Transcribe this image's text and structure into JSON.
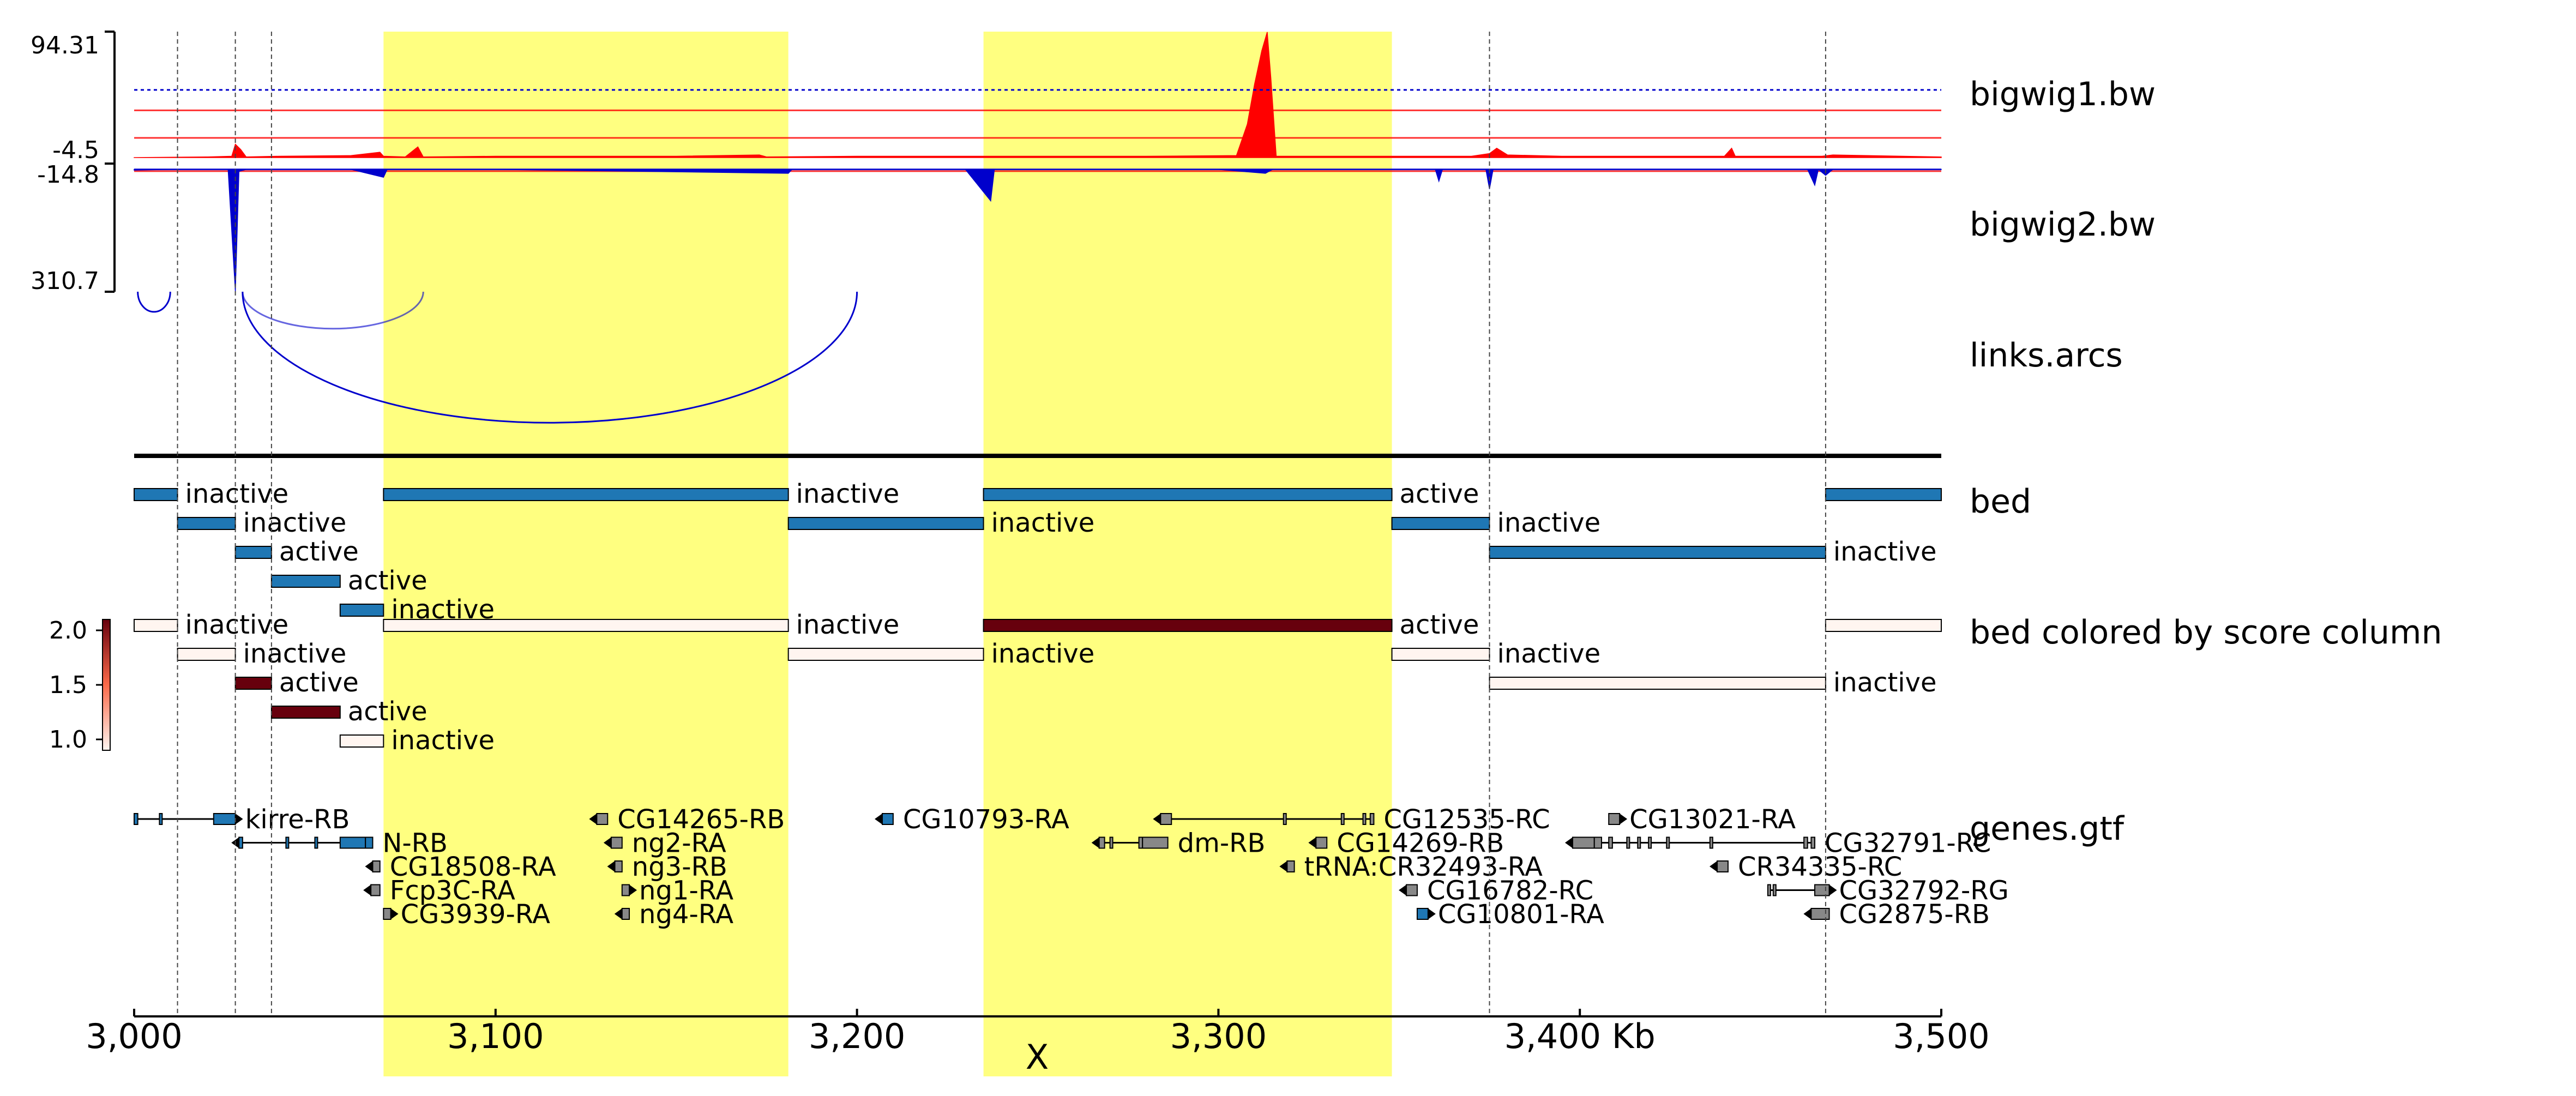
{
  "colors": {
    "highlight": "#ffff80",
    "bed_fill": "#1f77b4",
    "bigwig1": "#ff0000",
    "bigwig2": "#0000cc",
    "arcs": "#0000cc",
    "gene_fill": "#1f77b4",
    "gene_gray": "#888888",
    "score_low": "#fff5f0",
    "score_high": "#67000d"
  },
  "chart_data": {
    "type": "genome-tracks",
    "region": {
      "start": 3000000,
      "end": 3500000
    },
    "x_axis": {
      "ticks": [
        3000000,
        3100000,
        3200000,
        3300000,
        3400000,
        3500000
      ],
      "tick_labels": [
        "3,000",
        "3,100",
        "3,200",
        "3,300",
        "3,400 Kb",
        "3,500"
      ],
      "chrom_label": "X"
    },
    "highlights": [
      [
        3069000,
        3181000
      ],
      [
        3235000,
        3348000
      ]
    ],
    "vlines": [
      3012000,
      3028000,
      3038000,
      3375000,
      3468000
    ],
    "tracks": {
      "bigwig1": {
        "title": "bigwig1.bw",
        "scale_labels": [
          "94.31",
          "-4.5"
        ],
        "scale_range": [
          -4.5,
          94.31
        ],
        "points": [
          [
            3000000,
            0
          ],
          [
            3020000,
            0.5
          ],
          [
            3027000,
            1
          ],
          [
            3028000,
            10
          ],
          [
            3029500,
            6
          ],
          [
            3031000,
            0.5
          ],
          [
            3040000,
            1
          ],
          [
            3060000,
            1.5
          ],
          [
            3068000,
            4
          ],
          [
            3069000,
            1
          ],
          [
            3075000,
            0.5
          ],
          [
            3078500,
            8
          ],
          [
            3080000,
            0.5
          ],
          [
            3100000,
            1
          ],
          [
            3130000,
            1
          ],
          [
            3150000,
            1
          ],
          [
            3173000,
            2
          ],
          [
            3175000,
            0.5
          ],
          [
            3200000,
            1
          ],
          [
            3230000,
            1
          ],
          [
            3260000,
            1
          ],
          [
            3280000,
            1
          ],
          [
            3305000,
            1.5
          ],
          [
            3308000,
            25
          ],
          [
            3310000,
            55
          ],
          [
            3312000,
            80
          ],
          [
            3313500,
            94
          ],
          [
            3314500,
            60
          ],
          [
            3316000,
            1
          ],
          [
            3330000,
            1
          ],
          [
            3350000,
            1
          ],
          [
            3370000,
            1
          ],
          [
            3375000,
            3
          ],
          [
            3377000,
            7
          ],
          [
            3380000,
            2
          ],
          [
            3395000,
            1
          ],
          [
            3420000,
            1
          ],
          [
            3440000,
            1
          ],
          [
            3442000,
            7
          ],
          [
            3443000,
            1
          ],
          [
            3467000,
            1
          ],
          [
            3470000,
            2
          ],
          [
            3500000,
            0.5
          ]
        ]
      },
      "bigwig2": {
        "title": "bigwig2.bw",
        "scale_labels": [
          "-14.8",
          "310.7"
        ],
        "scale_range": [
          -14.8,
          310.7
        ],
        "points": [
          [
            3000000,
            -2
          ],
          [
            3010000,
            0
          ],
          [
            3026000,
            0
          ],
          [
            3028000,
            -310
          ],
          [
            3029000,
            -5
          ],
          [
            3031000,
            0
          ],
          [
            3060000,
            0
          ],
          [
            3069000,
            -20
          ],
          [
            3070000,
            0
          ],
          [
            3100000,
            0
          ],
          [
            3181000,
            -10
          ],
          [
            3182000,
            0
          ],
          [
            3230000,
            0
          ],
          [
            3237000,
            -80
          ],
          [
            3238000,
            0
          ],
          [
            3300000,
            0
          ],
          [
            3313000,
            -10
          ],
          [
            3315000,
            0
          ],
          [
            3360000,
            0
          ],
          [
            3361000,
            -30
          ],
          [
            3362000,
            0
          ],
          [
            3374000,
            0
          ],
          [
            3375000,
            -50
          ],
          [
            3376000,
            0
          ],
          [
            3463000,
            0
          ],
          [
            3465000,
            -40
          ],
          [
            3466000,
            0
          ],
          [
            3468000,
            -15
          ],
          [
            3470000,
            0
          ],
          [
            3500000,
            0
          ]
        ],
        "hlines": [
          {
            "value": -4.5,
            "color": "#ff0000",
            "style": "solid"
          },
          {
            "value": 0,
            "color": "#0000cc",
            "style": "solid"
          },
          {
            "value": 80,
            "color": "#ff0000",
            "style": "solid"
          },
          {
            "value": 150,
            "color": "#ff0000",
            "style": "solid"
          },
          {
            "value": 202,
            "color": "#0000cc",
            "style": "dotted"
          }
        ]
      },
      "links": {
        "title": "links.arcs",
        "arcs": [
          {
            "start": 3001000,
            "end": 3010000,
            "color": "#0000cc",
            "depth": 0.12,
            "alpha": 1
          },
          {
            "start": 3030000,
            "end": 3080000,
            "color": "#0000cc",
            "depth": 0.22,
            "alpha": 0.6
          },
          {
            "start": 3030000,
            "end": 3200000,
            "color": "#0000cc",
            "depth": 0.78,
            "alpha": 1
          }
        ]
      },
      "bed": {
        "title": "bed",
        "features": [
          {
            "start": 3000000,
            "end": 3012000,
            "label": "inactive",
            "row": 0
          },
          {
            "start": 3012000,
            "end": 3028000,
            "label": "inactive",
            "row": 1
          },
          {
            "start": 3028000,
            "end": 3038000,
            "label": "active",
            "row": 2
          },
          {
            "start": 3038000,
            "end": 3057000,
            "label": "active",
            "row": 3
          },
          {
            "start": 3057000,
            "end": 3069000,
            "label": "inactive",
            "row": 4
          },
          {
            "start": 3069000,
            "end": 3181000,
            "label": "inactive",
            "row": 0
          },
          {
            "start": 3181000,
            "end": 3235000,
            "label": "inactive",
            "row": 1
          },
          {
            "start": 3235000,
            "end": 3348000,
            "label": "active",
            "row": 0
          },
          {
            "start": 3348000,
            "end": 3375000,
            "label": "inactive",
            "row": 1
          },
          {
            "start": 3375000,
            "end": 3468000,
            "label": "inactive",
            "row": 2
          },
          {
            "start": 3468000,
            "end": 3500000,
            "label": "",
            "row": 0
          }
        ]
      },
      "bed_score": {
        "title": "bed colored by score column",
        "colorbar": {
          "ticks": [
            1.0,
            1.5,
            2.0
          ],
          "tick_labels": [
            "1.0",
            "1.5",
            "2.0"
          ],
          "range": [
            0.9,
            2.1
          ]
        },
        "features": [
          {
            "start": 3000000,
            "end": 3012000,
            "label": "inactive",
            "row": 0,
            "score": 1.0
          },
          {
            "start": 3012000,
            "end": 3028000,
            "label": "inactive",
            "row": 1,
            "score": 1.0
          },
          {
            "start": 3028000,
            "end": 3038000,
            "label": "active",
            "row": 2,
            "score": 2.0
          },
          {
            "start": 3038000,
            "end": 3057000,
            "label": "active",
            "row": 3,
            "score": 2.0
          },
          {
            "start": 3057000,
            "end": 3069000,
            "label": "inactive",
            "row": 4,
            "score": 1.0
          },
          {
            "start": 3069000,
            "end": 3181000,
            "label": "inactive",
            "row": 0,
            "score": 1.0
          },
          {
            "start": 3181000,
            "end": 3235000,
            "label": "inactive",
            "row": 1,
            "score": 1.0
          },
          {
            "start": 3235000,
            "end": 3348000,
            "label": "active",
            "row": 0,
            "score": 2.0
          },
          {
            "start": 3348000,
            "end": 3375000,
            "label": "inactive",
            "row": 1,
            "score": 1.0
          },
          {
            "start": 3375000,
            "end": 3468000,
            "label": "inactive",
            "row": 2,
            "score": 1.0
          },
          {
            "start": 3468000,
            "end": 3500000,
            "label": "",
            "row": 0,
            "score": 1.0
          }
        ]
      },
      "genes": {
        "title": "genes.gtf",
        "features": [
          {
            "name": "kirre-RB",
            "start": 3000000,
            "end": 3028000,
            "row": 0,
            "strand": "+",
            "exons": [
              [
                3000000,
                3001000
              ],
              [
                3007000,
                3007500
              ],
              [
                3022000,
                3028000
              ]
            ],
            "color": "#1f77b4"
          },
          {
            "name": "N-RB",
            "start": 3029000,
            "end": 3066000,
            "row": 1,
            "strand": "-",
            "exons": [
              [
                3029000,
                3030000
              ],
              [
                3042000,
                3042500
              ],
              [
                3050000,
                3050500
              ],
              [
                3057000,
                3064000
              ],
              [
                3064000,
                3066000
              ]
            ],
            "color": "#1f77b4"
          },
          {
            "name": "CG18508-RA",
            "start": 3066000,
            "end": 3068000,
            "row": 2,
            "strand": "-",
            "exons": [
              [
                3066000,
                3068000
              ]
            ],
            "color": "#888888"
          },
          {
            "name": "Fcp3C-RA",
            "start": 3065500,
            "end": 3068000,
            "row": 3,
            "strand": "-",
            "exons": [
              [
                3065500,
                3068000
              ]
            ],
            "color": "#888888"
          },
          {
            "name": "CG3939-RA",
            "start": 3069000,
            "end": 3071000,
            "row": 4,
            "strand": "+",
            "exons": [
              [
                3069000,
                3071000
              ]
            ],
            "color": "#888888"
          },
          {
            "name": "CG14265-RB",
            "start": 3128000,
            "end": 3131000,
            "row": 0,
            "strand": "-",
            "exons": [
              [
                3128000,
                3131000
              ]
            ],
            "color": "#888888"
          },
          {
            "name": "ng2-RA",
            "start": 3132000,
            "end": 3135000,
            "row": 1,
            "strand": "-",
            "exons": [
              [
                3132000,
                3135000
              ]
            ],
            "color": "#888888"
          },
          {
            "name": "ng3-RB",
            "start": 3133000,
            "end": 3135000,
            "row": 2,
            "strand": "-",
            "exons": [
              [
                3133000,
                3135000
              ]
            ],
            "color": "#888888"
          },
          {
            "name": "ng1-RA",
            "start": 3135000,
            "end": 3137000,
            "row": 3,
            "strand": "+",
            "exons": [
              [
                3135000,
                3137000
              ]
            ],
            "color": "#888888"
          },
          {
            "name": "ng4-RA",
            "start": 3135000,
            "end": 3137000,
            "row": 4,
            "strand": "-",
            "exons": [
              [
                3135000,
                3137000
              ]
            ],
            "color": "#888888"
          },
          {
            "name": "CG10793-RA",
            "start": 3207000,
            "end": 3210000,
            "row": 0,
            "strand": "-",
            "exons": [
              [
                3207000,
                3210000
              ]
            ],
            "color": "#1f77b4"
          },
          {
            "name": "dm-RB",
            "start": 3267000,
            "end": 3286000,
            "row": 1,
            "strand": "-",
            "exons": [
              [
                3267000,
                3268500
              ],
              [
                3270000,
                3270500
              ],
              [
                3278000,
                3279000
              ],
              [
                3279000,
                3286000
              ]
            ],
            "color": "#888888"
          },
          {
            "name": "CG12535-RC",
            "start": 3284000,
            "end": 3343000,
            "row": 0,
            "strand": "-",
            "exons": [
              [
                3284000,
                3287000
              ],
              [
                3318000,
                3318500
              ],
              [
                3334000,
                3334500
              ],
              [
                3340000,
                3340500
              ],
              [
                3342000,
                3343000
              ]
            ],
            "color": "#888888"
          },
          {
            "name": "CG14269-RB",
            "start": 3327000,
            "end": 3330000,
            "row": 1,
            "strand": "-",
            "exons": [
              [
                3327000,
                3330000
              ]
            ],
            "color": "#888888"
          },
          {
            "name": "tRNA:CR32493-RA",
            "start": 3319000,
            "end": 3321000,
            "row": 2,
            "strand": "-",
            "exons": [
              [
                3319000,
                3321000
              ]
            ],
            "color": "#888888"
          },
          {
            "name": "CG16782-RC",
            "start": 3352000,
            "end": 3355000,
            "row": 3,
            "strand": "-",
            "exons": [
              [
                3352000,
                3355000
              ]
            ],
            "color": "#888888"
          },
          {
            "name": "CG10801-RA",
            "start": 3355000,
            "end": 3358000,
            "row": 4,
            "strand": "+",
            "exons": [
              [
                3355000,
                3358000
              ]
            ],
            "color": "#1f77b4"
          },
          {
            "name": "CG13021-RA",
            "start": 3408000,
            "end": 3411000,
            "row": 0,
            "strand": "+",
            "exons": [
              [
                3408000,
                3411000
              ]
            ],
            "color": "#888888"
          },
          {
            "name": "CG32791-RC",
            "start": 3398000,
            "end": 3465000,
            "row": 1,
            "strand": "-",
            "exons": [
              [
                3398000,
                3404000
              ],
              [
                3404000,
                3406000
              ],
              [
                3408000,
                3409000
              ],
              [
                3413000,
                3413500
              ],
              [
                3416000,
                3416500
              ],
              [
                3419000,
                3419500
              ],
              [
                3424000,
                3424500
              ],
              [
                3436000,
                3436500
              ],
              [
                3462000,
                3463000
              ],
              [
                3464000,
                3465000
              ]
            ],
            "color": "#888888"
          },
          {
            "name": "CR34335-RC",
            "start": 3438000,
            "end": 3441000,
            "row": 2,
            "strand": "-",
            "exons": [
              [
                3438000,
                3441000
              ]
            ],
            "color": "#888888"
          },
          {
            "name": "CG32792-RG",
            "start": 3452000,
            "end": 3469000,
            "row": 3,
            "strand": "+",
            "exons": [
              [
                3452000,
                3452500
              ],
              [
                3453500,
                3454000
              ],
              [
                3465000,
                3469000
              ]
            ],
            "color": "#888888"
          },
          {
            "name": "CG2875-RB",
            "start": 3464000,
            "end": 3469000,
            "row": 4,
            "strand": "-",
            "exons": [
              [
                3464000,
                3469000
              ]
            ],
            "color": "#888888"
          }
        ]
      }
    }
  }
}
